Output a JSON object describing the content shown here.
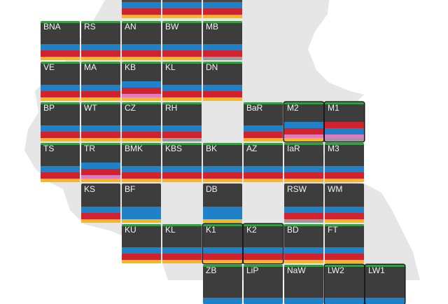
{
  "colors": {
    "map": "#e6e6e6",
    "tile_bg": "#3d3d3d",
    "green": "#3b9a45",
    "dark": "#474747",
    "blue": "#1f82c8",
    "red": "#d0232e",
    "yellow": "#f6b820",
    "pink": "#e07bc0",
    "gray": "#9a9a9a"
  },
  "tiles": [
    {
      "label": "",
      "row": -1,
      "col": 3,
      "bars": [
        "dark",
        "blue",
        "red",
        "yellow"
      ]
    },
    {
      "label": "",
      "row": -1,
      "col": 4,
      "bars": [
        "dark",
        "blue",
        "red",
        "yellow"
      ]
    },
    {
      "label": "",
      "row": -1,
      "col": 5,
      "bars": [
        "dark",
        "blue",
        "red",
        "yellow"
      ]
    },
    {
      "label": "BNA",
      "row": 0,
      "col": 1,
      "cap": "green",
      "bars": [
        "blue",
        "red",
        "yellow"
      ]
    },
    {
      "label": "RS",
      "row": 0,
      "col": 2,
      "cap": "green",
      "bars": [
        "blue",
        "red",
        "yellow"
      ]
    },
    {
      "label": "AN",
      "row": 0,
      "col": 3,
      "cap": "green",
      "bars": [
        "blue",
        "red",
        "yellow"
      ]
    },
    {
      "label": "BW",
      "row": 0,
      "col": 4,
      "cap": "green",
      "bars": [
        "blue",
        "red",
        "yellow"
      ]
    },
    {
      "label": "MB",
      "row": 0,
      "col": 5,
      "cap": "green",
      "bars": [
        "blue",
        "red",
        "gray"
      ]
    },
    {
      "label": "VE",
      "row": 1,
      "col": 1,
      "cap": "green",
      "bars": [
        "blue",
        "red",
        "yellow"
      ]
    },
    {
      "label": "MA",
      "row": 1,
      "col": 2,
      "cap": "green",
      "bars": [
        "blue",
        "red",
        "yellow"
      ]
    },
    {
      "label": "KB",
      "row": 1,
      "col": 3,
      "cap": "green",
      "bars": [
        "blue",
        "red",
        "pink",
        "yellow"
      ]
    },
    {
      "label": "KL",
      "row": 1,
      "col": 4,
      "cap": "green",
      "bars": [
        "blue",
        "red",
        "yellow"
      ]
    },
    {
      "label": "DN",
      "row": 1,
      "col": 5,
      "cap": "green",
      "bars": [
        "blue",
        "red",
        "yellow"
      ]
    },
    {
      "label": "BP",
      "row": 2,
      "col": 1,
      "cap": "green",
      "bars": [
        "blue",
        "red",
        "yellow"
      ]
    },
    {
      "label": "WT",
      "row": 2,
      "col": 2,
      "cap": "green",
      "bars": [
        "blue",
        "red",
        "yellow"
      ]
    },
    {
      "label": "CZ",
      "row": 2,
      "col": 3,
      "cap": "green",
      "bars": [
        "blue",
        "red",
        "yellow"
      ]
    },
    {
      "label": "RH",
      "row": 2,
      "col": 4,
      "cap": "green",
      "bars": [
        "blue",
        "red",
        "gray"
      ]
    },
    {
      "label": "BaR",
      "row": 2,
      "col": 6,
      "cap": "green",
      "bars": [
        "blue",
        "red",
        "yellow"
      ]
    },
    {
      "label": "M2",
      "row": 2,
      "col": 7,
      "cap": "green",
      "outlined": true,
      "bars": [
        "blue",
        "red",
        "pink",
        "yellow"
      ]
    },
    {
      "label": "M1",
      "row": 2,
      "col": 8,
      "cap": "green",
      "outlined": true,
      "bars": [
        "red",
        "blue",
        "pink",
        "gray"
      ]
    },
    {
      "label": "TS",
      "row": 3,
      "col": 1,
      "cap": "green",
      "bars": [
        "blue",
        "red",
        "yellow"
      ]
    },
    {
      "label": "TR",
      "row": 3,
      "col": 2,
      "cap": "green",
      "bars": [
        "blue",
        "red",
        "pink",
        "yellow"
      ]
    },
    {
      "label": "BMK",
      "row": 3,
      "col": 3,
      "cap": "green",
      "bars": [
        "blue",
        "red",
        "yellow"
      ]
    },
    {
      "label": "KBS",
      "row": 3,
      "col": 4,
      "cap": "green",
      "bars": [
        "blue",
        "red",
        "yellow"
      ]
    },
    {
      "label": "BK",
      "row": 3,
      "col": 5,
      "cap": "green",
      "bars": [
        "blue",
        "red",
        "yellow"
      ]
    },
    {
      "label": "AZ",
      "row": 3,
      "col": 6,
      "cap": "green",
      "bars": [
        "blue",
        "red",
        "yellow"
      ]
    },
    {
      "label": "IaR",
      "row": 3,
      "col": 7,
      "cap": "green",
      "bars": [
        "blue",
        "red",
        "yellow"
      ]
    },
    {
      "label": "M3",
      "row": 3,
      "col": 8,
      "cap": "green",
      "bars": [
        "blue",
        "red",
        "yellow"
      ]
    },
    {
      "label": "KS",
      "row": 4,
      "col": 2,
      "bars": [
        "blue",
        "red",
        "yellow"
      ]
    },
    {
      "label": "BF",
      "row": 4,
      "col": 3,
      "bars": [
        "blue",
        "blue",
        "yellow"
      ]
    },
    {
      "label": "DB",
      "row": 4,
      "col": 5,
      "bars": [
        "blue",
        "blue",
        "yellow"
      ]
    },
    {
      "label": "RSW",
      "row": 4,
      "col": 7,
      "bars": [
        "blue",
        "red",
        "gray"
      ]
    },
    {
      "label": "WM",
      "row": 4,
      "col": 8,
      "bars": [
        "blue",
        "red",
        "yellow"
      ]
    },
    {
      "label": "KU",
      "row": 5,
      "col": 3,
      "cap": "green",
      "bars": [
        "blue",
        "red",
        "yellow"
      ]
    },
    {
      "label": "KL",
      "row": 5,
      "col": 4,
      "cap": "green",
      "bars": [
        "blue",
        "red",
        "yellow"
      ]
    },
    {
      "label": "K1",
      "row": 5,
      "col": 5,
      "cap": "green",
      "outlined": true,
      "bars": [
        "blue",
        "red",
        "yellow"
      ]
    },
    {
      "label": "K2",
      "row": 5,
      "col": 6,
      "cap": "green",
      "outlined": true,
      "bars": [
        "blue",
        "red",
        "yellow"
      ]
    },
    {
      "label": "BD",
      "row": 5,
      "col": 7,
      "cap": "green",
      "bars": [
        "blue",
        "red",
        "yellow"
      ]
    },
    {
      "label": "FT",
      "row": 5,
      "col": 8,
      "cap": "green",
      "bars": [
        "blue",
        "red",
        "yellow"
      ]
    },
    {
      "label": "ZB",
      "row": 6,
      "col": 5,
      "cap": "green",
      "bars": [
        "blue"
      ]
    },
    {
      "label": "LiP",
      "row": 6,
      "col": 6,
      "cap": "green",
      "bars": [
        "blue"
      ]
    },
    {
      "label": "NaW",
      "row": 6,
      "col": 7,
      "cap": "green",
      "bars": [
        "blue"
      ]
    },
    {
      "label": "LW2",
      "row": 6,
      "col": 8,
      "cap": "green",
      "outlined": true,
      "bars": [
        "blue"
      ]
    },
    {
      "label": "LW1",
      "row": 6,
      "col": 9,
      "cap": "green",
      "outlined": true,
      "bars": [
        "blue"
      ]
    }
  ]
}
